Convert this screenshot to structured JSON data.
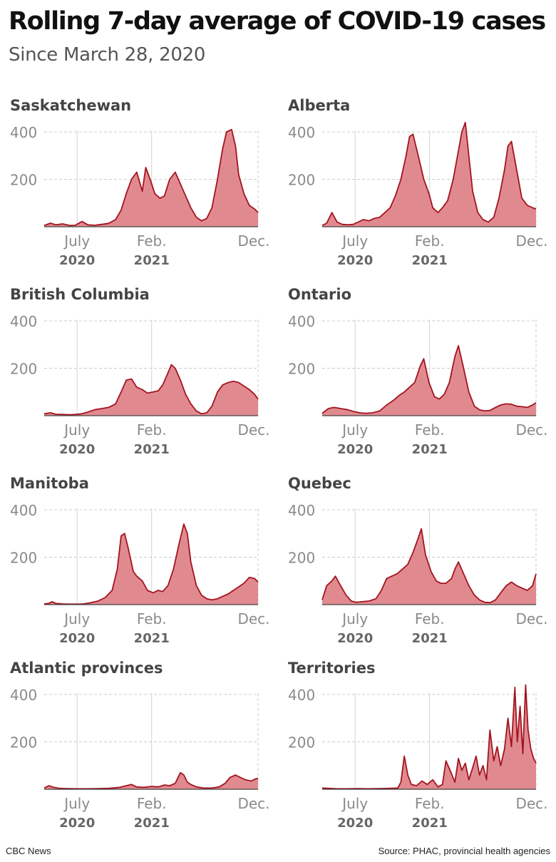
{
  "title": "Rolling 7-day average of COVID-19 cases",
  "subtitle": "Since March 28, 2020",
  "source": "Source: PHAC, provincial health agencies",
  "credit": "CBC News",
  "colors": {
    "line": "#a3141f",
    "fill": "#e08a90",
    "grid": "#cccccc",
    "tick": "#8a8a8a",
    "year": "#666666",
    "panel_title": "#444444"
  },
  "chart_data": [
    {
      "type": "area",
      "title": "Saskatchewan",
      "x_ticks": [
        "July",
        "Feb.",
        "Dec."
      ],
      "x_years": [
        "2020",
        "2021",
        ""
      ],
      "y_ticks": [
        200,
        400
      ],
      "ylim": [
        0,
        420
      ],
      "xlim": [
        "2020-03-28",
        "2021-12-05"
      ],
      "x": [
        "2020-03-28",
        "2020-04-15",
        "2020-05-01",
        "2020-05-20",
        "2020-06-10",
        "2020-06-25",
        "2020-07-15",
        "2020-08-01",
        "2020-08-20",
        "2020-09-10",
        "2020-09-30",
        "2020-10-20",
        "2020-11-05",
        "2020-11-20",
        "2020-12-05",
        "2020-12-20",
        "2021-01-05",
        "2021-01-15",
        "2021-01-30",
        "2021-02-10",
        "2021-02-25",
        "2021-03-10",
        "2021-03-25",
        "2021-04-10",
        "2021-04-25",
        "2021-05-10",
        "2021-05-25",
        "2021-06-10",
        "2021-06-25",
        "2021-07-10",
        "2021-07-25",
        "2021-08-10",
        "2021-08-25",
        "2021-09-05",
        "2021-09-20",
        "2021-10-01",
        "2021-10-10",
        "2021-10-25",
        "2021-11-10",
        "2021-11-25",
        "2021-12-05"
      ],
      "y": [
        5,
        15,
        8,
        12,
        5,
        6,
        22,
        8,
        6,
        10,
        14,
        30,
        70,
        140,
        200,
        230,
        150,
        250,
        190,
        140,
        120,
        130,
        200,
        230,
        180,
        130,
        80,
        40,
        25,
        35,
        80,
        200,
        330,
        400,
        410,
        340,
        220,
        140,
        90,
        75,
        60
      ]
    },
    {
      "type": "area",
      "title": "Alberta",
      "x_ticks": [
        "July",
        "Feb.",
        "Dec."
      ],
      "x_years": [
        "2020",
        "2021",
        ""
      ],
      "y_ticks": [
        200,
        400
      ],
      "ylim": [
        0,
        420
      ],
      "xlim": [
        "2020-03-28",
        "2021-12-05"
      ],
      "x": [
        "2020-03-28",
        "2020-04-10",
        "2020-04-25",
        "2020-05-10",
        "2020-05-25",
        "2020-06-10",
        "2020-06-25",
        "2020-07-10",
        "2020-07-25",
        "2020-08-10",
        "2020-08-25",
        "2020-09-10",
        "2020-09-25",
        "2020-10-10",
        "2020-10-25",
        "2020-11-10",
        "2020-11-25",
        "2020-12-05",
        "2020-12-15",
        "2020-12-30",
        "2021-01-15",
        "2021-01-30",
        "2021-02-10",
        "2021-02-25",
        "2021-03-10",
        "2021-03-25",
        "2021-04-10",
        "2021-04-25",
        "2021-05-05",
        "2021-05-15",
        "2021-05-25",
        "2021-06-05",
        "2021-06-20",
        "2021-07-05",
        "2021-07-20",
        "2021-08-05",
        "2021-08-20",
        "2021-09-05",
        "2021-09-15",
        "2021-09-25",
        "2021-10-10",
        "2021-10-25",
        "2021-11-10",
        "2021-11-25",
        "2021-12-05"
      ],
      "y": [
        5,
        15,
        60,
        20,
        10,
        8,
        10,
        20,
        30,
        25,
        35,
        40,
        60,
        80,
        130,
        200,
        300,
        380,
        390,
        300,
        200,
        140,
        80,
        60,
        80,
        110,
        200,
        320,
        400,
        440,
        300,
        150,
        60,
        30,
        20,
        40,
        120,
        240,
        340,
        360,
        240,
        120,
        90,
        80,
        75
      ]
    },
    {
      "type": "area",
      "title": "British Columbia",
      "x_ticks": [
        "July",
        "Feb.",
        "Dec."
      ],
      "x_years": [
        "2020",
        "2021",
        ""
      ],
      "y_ticks": [
        200,
        400
      ],
      "ylim": [
        0,
        420
      ],
      "xlim": [
        "2020-03-28",
        "2021-12-05"
      ],
      "x": [
        "2020-03-28",
        "2020-04-15",
        "2020-05-01",
        "2020-05-20",
        "2020-06-10",
        "2020-06-25",
        "2020-07-15",
        "2020-08-01",
        "2020-08-20",
        "2020-09-10",
        "2020-09-30",
        "2020-10-20",
        "2020-11-05",
        "2020-11-20",
        "2020-12-05",
        "2020-12-20",
        "2021-01-05",
        "2021-01-20",
        "2021-02-05",
        "2021-02-20",
        "2021-03-05",
        "2021-03-20",
        "2021-03-30",
        "2021-04-10",
        "2021-04-25",
        "2021-05-10",
        "2021-05-25",
        "2021-06-10",
        "2021-06-25",
        "2021-07-10",
        "2021-07-25",
        "2021-08-10",
        "2021-08-25",
        "2021-09-10",
        "2021-09-25",
        "2021-10-10",
        "2021-10-25",
        "2021-11-10",
        "2021-11-25",
        "2021-12-05"
      ],
      "y": [
        8,
        12,
        6,
        5,
        4,
        5,
        8,
        15,
        25,
        30,
        35,
        50,
        100,
        150,
        155,
        120,
        110,
        95,
        100,
        105,
        130,
        180,
        215,
        200,
        150,
        90,
        50,
        20,
        8,
        12,
        40,
        100,
        130,
        140,
        145,
        140,
        125,
        110,
        90,
        70
      ]
    },
    {
      "type": "area",
      "title": "Ontario",
      "x_ticks": [
        "July",
        "Feb.",
        "Dec."
      ],
      "x_years": [
        "2020",
        "2021",
        ""
      ],
      "y_ticks": [
        200,
        400
      ],
      "ylim": [
        0,
        420
      ],
      "xlim": [
        "2020-03-28",
        "2021-12-05"
      ],
      "x": [
        "2020-03-28",
        "2020-04-15",
        "2020-05-01",
        "2020-05-20",
        "2020-06-10",
        "2020-06-25",
        "2020-07-15",
        "2020-08-01",
        "2020-08-20",
        "2020-09-10",
        "2020-09-30",
        "2020-10-20",
        "2020-11-05",
        "2020-11-20",
        "2020-12-05",
        "2020-12-20",
        "2021-01-05",
        "2021-01-15",
        "2021-01-30",
        "2021-02-15",
        "2021-03-01",
        "2021-03-15",
        "2021-03-30",
        "2021-04-15",
        "2021-04-25",
        "2021-05-10",
        "2021-05-25",
        "2021-06-10",
        "2021-06-25",
        "2021-07-10",
        "2021-07-25",
        "2021-08-10",
        "2021-08-25",
        "2021-09-10",
        "2021-09-25",
        "2021-10-10",
        "2021-10-25",
        "2021-11-10",
        "2021-11-25",
        "2021-12-05"
      ],
      "y": [
        10,
        30,
        35,
        30,
        25,
        18,
        12,
        10,
        12,
        20,
        45,
        65,
        85,
        100,
        120,
        140,
        210,
        240,
        140,
        80,
        70,
        90,
        140,
        250,
        295,
        200,
        100,
        40,
        25,
        20,
        22,
        35,
        45,
        50,
        48,
        40,
        38,
        35,
        45,
        55
      ]
    },
    {
      "type": "area",
      "title": "Manitoba",
      "x_ticks": [
        "July",
        "Feb.",
        "Dec."
      ],
      "x_years": [
        "2020",
        "2021",
        ""
      ],
      "y_ticks": [
        200,
        400
      ],
      "ylim": [
        0,
        420
      ],
      "xlim": [
        "2020-03-28",
        "2021-12-05"
      ],
      "x": [
        "2020-03-28",
        "2020-04-10",
        "2020-04-20",
        "2020-05-01",
        "2020-05-20",
        "2020-06-10",
        "2020-07-01",
        "2020-07-20",
        "2020-08-10",
        "2020-08-30",
        "2020-09-20",
        "2020-10-10",
        "2020-10-25",
        "2020-11-05",
        "2020-11-15",
        "2020-11-25",
        "2020-12-10",
        "2020-12-20",
        "2021-01-05",
        "2021-01-20",
        "2021-02-05",
        "2021-02-20",
        "2021-03-05",
        "2021-03-20",
        "2021-04-05",
        "2021-04-20",
        "2021-05-05",
        "2021-05-15",
        "2021-05-25",
        "2021-06-10",
        "2021-06-25",
        "2021-07-10",
        "2021-07-25",
        "2021-08-10",
        "2021-08-25",
        "2021-09-10",
        "2021-09-25",
        "2021-10-10",
        "2021-10-25",
        "2021-11-10",
        "2021-11-25",
        "2021-12-05"
      ],
      "y": [
        3,
        5,
        12,
        5,
        3,
        2,
        2,
        3,
        8,
        15,
        30,
        60,
        150,
        290,
        300,
        240,
        140,
        120,
        100,
        60,
        50,
        60,
        55,
        80,
        150,
        250,
        340,
        300,
        180,
        80,
        40,
        25,
        20,
        25,
        35,
        45,
        60,
        75,
        90,
        115,
        110,
        95
      ]
    },
    {
      "type": "area",
      "title": "Quebec",
      "x_ticks": [
        "July",
        "Feb.",
        "Dec."
      ],
      "x_years": [
        "2020",
        "2021",
        ""
      ],
      "y_ticks": [
        200,
        400
      ],
      "ylim": [
        0,
        420
      ],
      "xlim": [
        "2020-03-28",
        "2021-12-05"
      ],
      "x": [
        "2020-03-28",
        "2020-04-10",
        "2020-04-25",
        "2020-05-05",
        "2020-05-20",
        "2020-06-05",
        "2020-06-20",
        "2020-07-05",
        "2020-07-20",
        "2020-08-10",
        "2020-08-30",
        "2020-09-15",
        "2020-09-30",
        "2020-10-15",
        "2020-10-30",
        "2020-11-15",
        "2020-11-30",
        "2020-12-15",
        "2020-12-30",
        "2021-01-08",
        "2021-01-20",
        "2021-02-05",
        "2021-02-20",
        "2021-03-05",
        "2021-03-20",
        "2021-04-05",
        "2021-04-15",
        "2021-04-25",
        "2021-05-10",
        "2021-05-25",
        "2021-06-10",
        "2021-06-25",
        "2021-07-10",
        "2021-07-25",
        "2021-08-10",
        "2021-08-25",
        "2021-09-10",
        "2021-09-25",
        "2021-10-10",
        "2021-10-25",
        "2021-11-10",
        "2021-11-25",
        "2021-12-05"
      ],
      "y": [
        20,
        80,
        100,
        120,
        80,
        40,
        15,
        10,
        12,
        15,
        25,
        60,
        110,
        120,
        130,
        150,
        170,
        220,
        280,
        320,
        210,
        140,
        100,
        90,
        90,
        110,
        150,
        180,
        130,
        80,
        40,
        20,
        10,
        8,
        20,
        50,
        80,
        95,
        80,
        70,
        60,
        80,
        130
      ]
    },
    {
      "type": "area",
      "title": "Atlantic provinces",
      "x_ticks": [
        "July",
        "Feb.",
        "Dec."
      ],
      "x_years": [
        "2020",
        "2021",
        ""
      ],
      "y_ticks": [
        200,
        400
      ],
      "ylim": [
        0,
        420
      ],
      "xlim": [
        "2020-03-28",
        "2021-12-05"
      ],
      "x": [
        "2020-03-28",
        "2020-04-10",
        "2020-04-25",
        "2020-05-10",
        "2020-06-01",
        "2020-07-01",
        "2020-08-01",
        "2020-09-01",
        "2020-10-01",
        "2020-11-01",
        "2020-11-20",
        "2020-12-05",
        "2020-12-20",
        "2021-01-10",
        "2021-02-01",
        "2021-02-20",
        "2021-03-10",
        "2021-03-25",
        "2021-04-10",
        "2021-04-25",
        "2021-05-05",
        "2021-05-15",
        "2021-05-25",
        "2021-06-10",
        "2021-07-01",
        "2021-07-25",
        "2021-08-15",
        "2021-09-01",
        "2021-09-15",
        "2021-10-01",
        "2021-10-15",
        "2021-10-30",
        "2021-11-15",
        "2021-11-30",
        "2021-12-05"
      ],
      "y": [
        5,
        15,
        8,
        4,
        3,
        2,
        2,
        3,
        4,
        8,
        15,
        20,
        10,
        8,
        12,
        10,
        18,
        15,
        25,
        70,
        60,
        30,
        20,
        10,
        5,
        5,
        10,
        25,
        50,
        60,
        50,
        40,
        35,
        45,
        45
      ]
    },
    {
      "type": "area",
      "title": "Territories",
      "x_ticks": [
        "July",
        "Feb.",
        "Dec."
      ],
      "x_years": [
        "2020",
        "2021",
        ""
      ],
      "y_ticks": [
        200,
        400
      ],
      "ylim": [
        0,
        460
      ],
      "xlim": [
        "2020-03-28",
        "2021-12-05"
      ],
      "x": [
        "2020-03-28",
        "2020-04-15",
        "2020-05-10",
        "2020-06-10",
        "2020-07-10",
        "2020-08-10",
        "2020-09-10",
        "2020-10-10",
        "2020-11-01",
        "2020-11-10",
        "2020-11-20",
        "2020-11-30",
        "2020-12-10",
        "2020-12-25",
        "2021-01-10",
        "2021-01-25",
        "2021-02-10",
        "2021-02-25",
        "2021-03-10",
        "2021-03-20",
        "2021-04-01",
        "2021-04-15",
        "2021-04-25",
        "2021-05-05",
        "2021-05-15",
        "2021-05-25",
        "2021-06-05",
        "2021-06-15",
        "2021-06-25",
        "2021-07-05",
        "2021-07-15",
        "2021-07-25",
        "2021-08-05",
        "2021-08-15",
        "2021-08-25",
        "2021-09-05",
        "2021-09-15",
        "2021-09-25",
        "2021-10-05",
        "2021-10-12",
        "2021-10-20",
        "2021-10-28",
        "2021-11-05",
        "2021-11-12",
        "2021-11-20",
        "2021-11-28",
        "2021-12-05"
      ],
      "y": [
        5,
        4,
        2,
        2,
        3,
        2,
        3,
        4,
        5,
        30,
        140,
        60,
        20,
        15,
        35,
        20,
        40,
        10,
        20,
        120,
        80,
        30,
        130,
        80,
        110,
        40,
        90,
        140,
        60,
        100,
        40,
        250,
        120,
        180,
        100,
        170,
        300,
        180,
        430,
        200,
        350,
        150,
        440,
        250,
        170,
        130,
        110
      ]
    }
  ]
}
